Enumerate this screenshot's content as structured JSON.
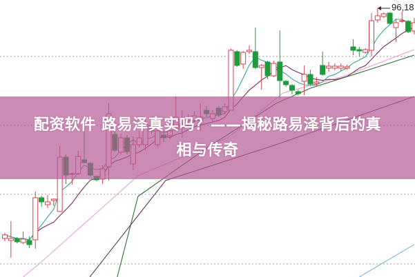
{
  "title_line1": "配资软件 路易泽真实吗？——揭秘路易泽背后的真",
  "title_line2": "相与传奇",
  "chart_data": {
    "type": "candlestick",
    "ylim": [
      47.5,
      97.5
    ],
    "grid": "dotted horizontal",
    "colors": {
      "up": "#d2404c",
      "down": "#1f9a3c",
      "ma5": "#3aa39a",
      "ma10": "#7a2c5c",
      "ma20": "#e6a0d8",
      "ma30": "#2f6f2f",
      "ma60": "#5a3a5a",
      "ma120": "#7ab6e0",
      "banner": "#ca8bb5"
    },
    "max_label": "96,18",
    "candles": [
      [
        54.5,
        55.13,
        55.5,
        54.0
      ],
      [
        54.13,
        54.5,
        57.63,
        51.0
      ],
      [
        54.5,
        53.88,
        54.75,
        53.63
      ],
      [
        53.75,
        54.38,
        55.75,
        53.5
      ],
      [
        54.13,
        53.38,
        54.88,
        52.75
      ],
      [
        54.25,
        61.88,
        63.0,
        52.63
      ],
      [
        61.88,
        61.13,
        62.25,
        60.25
      ],
      [
        60.63,
        61.13,
        62.38,
        60.0
      ],
      [
        61.38,
        61.63,
        61.75,
        60.38
      ],
      [
        59.38,
        69.25,
        71.25,
        59.38
      ],
      [
        69.25,
        66.0,
        69.75,
        64.38
      ],
      [
        66.13,
        66.25,
        66.5,
        64.25
      ],
      [
        66.25,
        69.38,
        70.38,
        66.0
      ],
      [
        68.75,
        68.25,
        74.63,
        68.25
      ],
      [
        68.13,
        66.0,
        68.25,
        65.75
      ],
      [
        65.75,
        65.13,
        65.88,
        64.88
      ],
      [
        65.25,
        67.13,
        67.75,
        64.38
      ],
      [
        67.5,
        77.13,
        79.0,
        65.0
      ],
      [
        73.38,
        70.5,
        74.0,
        70.25
      ],
      [
        70.13,
        72.75,
        73.5,
        69.75
      ],
      [
        72.75,
        70.25,
        73.25,
        69.75
      ],
      [
        68.0,
        71.5,
        73.0,
        66.88
      ],
      [
        71.5,
        72.75,
        74.0,
        71.0
      ],
      [
        71.5,
        75.25,
        76.5,
        70.5
      ],
      [
        74.88,
        74.0,
        75.5,
        73.5
      ],
      [
        71.5,
        74.0,
        75.0,
        71.0
      ],
      [
        73.25,
        72.75,
        74.0,
        72.0
      ],
      [
        73.13,
        74.0,
        75.5,
        72.5
      ],
      [
        74.63,
        76.5,
        80.25,
        74.0
      ],
      [
        74.63,
        75.25,
        77.75,
        72.75
      ],
      [
        75.88,
        76.25,
        77.0,
        75.5
      ],
      [
        75.88,
        76.75,
        77.5,
        75.5
      ],
      [
        75.88,
        76.5,
        79.0,
        74.0
      ],
      [
        77.75,
        77.13,
        78.5,
        76.5
      ],
      [
        76.25,
        77.13,
        77.75,
        75.75
      ],
      [
        78.13,
        76.88,
        78.5,
        76.5
      ],
      [
        77.5,
        78.38,
        79.0,
        77.0
      ],
      [
        77.75,
        88.63,
        88.88,
        77.75
      ],
      [
        88.38,
        85.88,
        88.63,
        85.63
      ],
      [
        86.13,
        88.25,
        88.5,
        85.25
      ],
      [
        88.38,
        88.63,
        89.5,
        88.0
      ],
      [
        88.38,
        85.5,
        92.75,
        85.25
      ],
      [
        85.5,
        85.88,
        86.13,
        81.5
      ],
      [
        86.5,
        84.0,
        86.75,
        83.38
      ],
      [
        84.0,
        86.25,
        86.75,
        83.75
      ],
      [
        86.5,
        83.13,
        92.25,
        79.88
      ],
      [
        83.0,
        82.38,
        83.25,
        82.0
      ],
      [
        82.25,
        81.38,
        82.5,
        80.63
      ],
      [
        81.13,
        80.75,
        81.5,
        80.38
      ],
      [
        83.0,
        84.25,
        85.88,
        80.5
      ],
      [
        84.25,
        82.5,
        85.13,
        82.25
      ],
      [
        82.63,
        82.88,
        83.75,
        82.13
      ],
      [
        85.88,
        84.25,
        88.38,
        84.0
      ],
      [
        85.38,
        85.75,
        86.5,
        84.75
      ],
      [
        85.38,
        85.75,
        86.25,
        85.0
      ],
      [
        85.38,
        85.75,
        86.25,
        84.88
      ],
      [
        85.38,
        85.63,
        86.0,
        85.13
      ],
      [
        89.25,
        88.63,
        90.63,
        87.75
      ],
      [
        88.75,
        88.5,
        89.25,
        87.5
      ],
      [
        88.25,
        88.75,
        89.0,
        88.0
      ],
      [
        88.63,
        94.0,
        95.38,
        87.5
      ],
      [
        94.13,
        94.88,
        96.25,
        93.63
      ],
      [
        94.75,
        95.25,
        95.5,
        94.5
      ],
      [
        95.38,
        93.5,
        95.5,
        93.38
      ],
      [
        92.75,
        93.63,
        94.38,
        90.13
      ],
      [
        93.88,
        94.0,
        95.63,
        93.63
      ],
      [
        93.88,
        92.0,
        94.13,
        91.75
      ],
      [
        92.13,
        93.63,
        94.5,
        91.5
      ]
    ],
    "long_averages": [
      {
        "key": "ma20",
        "points": [
          [
            3,
            47.5
          ],
          [
            6,
            50.25
          ],
          [
            21.8,
            65.88
          ],
          [
            36.5,
            72.75
          ],
          [
            45.5,
            80.88
          ],
          [
            55.7,
            84.0
          ],
          [
            67,
            88.75
          ]
        ]
      },
      {
        "key": "ma30",
        "points": [
          [
            18.4,
            47.5
          ],
          [
            21.8,
            62.13
          ],
          [
            33,
            70.88
          ],
          [
            44.4,
            79.0
          ],
          [
            50,
            81.75
          ],
          [
            60,
            85.25
          ],
          [
            67,
            87.75
          ]
        ]
      },
      {
        "key": "ma60",
        "points": [
          [
            13.9,
            47.5
          ],
          [
            26.3,
            65.0
          ],
          [
            44.4,
            71.5
          ],
          [
            55.7,
            75.88
          ],
          [
            67,
            80.25
          ]
        ]
      },
      {
        "key": "ma120",
        "points": [
          [
            58,
            47.5
          ],
          [
            67,
            53.4
          ]
        ]
      }
    ]
  }
}
